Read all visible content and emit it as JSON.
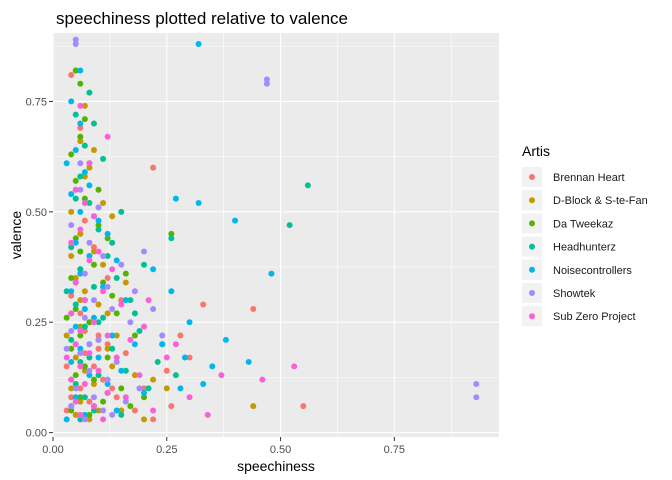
{
  "chart_data": {
    "type": "scatter",
    "title": "speechiness plotted relative to valence",
    "xlabel": "speechiness",
    "ylabel": "valence",
    "xlim": [
      0.0,
      0.98
    ],
    "ylim": [
      -0.01,
      0.905
    ],
    "x_ticks": [
      0.0,
      0.25,
      0.5,
      0.75
    ],
    "x_tick_labels": [
      "0.00",
      "0.25",
      "0.50",
      "0.75"
    ],
    "y_ticks": [
      0.0,
      0.25,
      0.5,
      0.75
    ],
    "y_tick_labels": [
      "0.00",
      "0.25",
      "0.50",
      "0.75"
    ],
    "grid": true,
    "legend_position": "right",
    "legend_title": "Artis",
    "series": [
      {
        "name": "Brennan Heart",
        "color": "#F8766D",
        "points": [
          [
            0.04,
            0.81
          ],
          [
            0.22,
            0.6
          ],
          [
            0.06,
            0.69
          ],
          [
            0.33,
            0.29
          ],
          [
            0.44,
            0.28
          ],
          [
            0.55,
            0.06
          ],
          [
            0.28,
            0.22
          ],
          [
            0.05,
            0.55
          ],
          [
            0.07,
            0.48
          ],
          [
            0.09,
            0.42
          ],
          [
            0.12,
            0.35
          ],
          [
            0.15,
            0.3
          ],
          [
            0.04,
            0.31
          ],
          [
            0.06,
            0.27
          ],
          [
            0.08,
            0.25
          ],
          [
            0.1,
            0.22
          ],
          [
            0.05,
            0.2
          ],
          [
            0.07,
            0.18
          ],
          [
            0.03,
            0.15
          ],
          [
            0.09,
            0.15
          ],
          [
            0.11,
            0.12
          ],
          [
            0.13,
            0.1
          ],
          [
            0.06,
            0.1
          ],
          [
            0.04,
            0.08
          ],
          [
            0.08,
            0.07
          ],
          [
            0.18,
            0.05
          ],
          [
            0.22,
            0.03
          ],
          [
            0.03,
            0.05
          ],
          [
            0.05,
            0.04
          ],
          [
            0.07,
            0.23
          ],
          [
            0.06,
            0.37
          ],
          [
            0.04,
            0.12
          ],
          [
            0.2,
            0.1
          ],
          [
            0.16,
            0.18
          ],
          [
            0.25,
            0.14
          ],
          [
            0.1,
            0.19
          ],
          [
            0.12,
            0.2
          ],
          [
            0.14,
            0.08
          ],
          [
            0.3,
            0.17
          ],
          [
            0.26,
            0.06
          ]
        ]
      },
      {
        "name": "D-Block & S-te-Fan",
        "color": "#C49A00",
        "points": [
          [
            0.05,
            0.82
          ],
          [
            0.07,
            0.74
          ],
          [
            0.06,
            0.66
          ],
          [
            0.08,
            0.6
          ],
          [
            0.04,
            0.5
          ],
          [
            0.06,
            0.45
          ],
          [
            0.09,
            0.41
          ],
          [
            0.11,
            0.38
          ],
          [
            0.13,
            0.49
          ],
          [
            0.05,
            0.35
          ],
          [
            0.07,
            0.32
          ],
          [
            0.1,
            0.29
          ],
          [
            0.04,
            0.27
          ],
          [
            0.06,
            0.24
          ],
          [
            0.08,
            0.2
          ],
          [
            0.12,
            0.19
          ],
          [
            0.05,
            0.17
          ],
          [
            0.07,
            0.14
          ],
          [
            0.09,
            0.11
          ],
          [
            0.04,
            0.1
          ],
          [
            0.06,
            0.07
          ],
          [
            0.1,
            0.05
          ],
          [
            0.15,
            0.05
          ],
          [
            0.2,
            0.03
          ],
          [
            0.44,
            0.06
          ],
          [
            0.05,
            0.04
          ],
          [
            0.08,
            0.03
          ],
          [
            0.14,
            0.22
          ],
          [
            0.18,
            0.13
          ],
          [
            0.16,
            0.34
          ],
          [
            0.03,
            0.22
          ],
          [
            0.11,
            0.52
          ],
          [
            0.09,
            0.64
          ],
          [
            0.13,
            0.15
          ],
          [
            0.22,
            0.12
          ],
          [
            0.07,
            0.58
          ],
          [
            0.06,
            0.3
          ],
          [
            0.12,
            0.27
          ],
          [
            0.04,
            0.4
          ],
          [
            0.25,
            0.1
          ]
        ]
      },
      {
        "name": "Da Tweekaz",
        "color": "#53B400",
        "points": [
          [
            0.05,
            0.82
          ],
          [
            0.06,
            0.67
          ],
          [
            0.08,
            0.61
          ],
          [
            0.05,
            0.57
          ],
          [
            0.07,
            0.53
          ],
          [
            0.1,
            0.47
          ],
          [
            0.12,
            0.44
          ],
          [
            0.26,
            0.45
          ],
          [
            0.06,
            0.41
          ],
          [
            0.09,
            0.38
          ],
          [
            0.04,
            0.35
          ],
          [
            0.11,
            0.34
          ],
          [
            0.07,
            0.3
          ],
          [
            0.05,
            0.28
          ],
          [
            0.14,
            0.27
          ],
          [
            0.08,
            0.25
          ],
          [
            0.06,
            0.22
          ],
          [
            0.1,
            0.21
          ],
          [
            0.04,
            0.19
          ],
          [
            0.12,
            0.17
          ],
          [
            0.07,
            0.15
          ],
          [
            0.05,
            0.13
          ],
          [
            0.09,
            0.12
          ],
          [
            0.15,
            0.1
          ],
          [
            0.06,
            0.08
          ],
          [
            0.11,
            0.07
          ],
          [
            0.04,
            0.05
          ],
          [
            0.08,
            0.04
          ],
          [
            0.17,
            0.06
          ],
          [
            0.2,
            0.08
          ],
          [
            0.03,
            0.26
          ],
          [
            0.13,
            0.31
          ],
          [
            0.16,
            0.36
          ],
          [
            0.05,
            0.44
          ],
          [
            0.09,
            0.49
          ],
          [
            0.07,
            0.71
          ],
          [
            0.06,
            0.79
          ],
          [
            0.04,
            0.63
          ],
          [
            0.1,
            0.55
          ],
          [
            0.18,
            0.22
          ]
        ]
      },
      {
        "name": "Headhunterz",
        "color": "#00C094",
        "points": [
          [
            0.56,
            0.56
          ],
          [
            0.52,
            0.47
          ],
          [
            0.26,
            0.44
          ],
          [
            0.15,
            0.5
          ],
          [
            0.05,
            0.72
          ],
          [
            0.07,
            0.65
          ],
          [
            0.06,
            0.58
          ],
          [
            0.08,
            0.52
          ],
          [
            0.1,
            0.46
          ],
          [
            0.04,
            0.42
          ],
          [
            0.12,
            0.4
          ],
          [
            0.06,
            0.37
          ],
          [
            0.14,
            0.35
          ],
          [
            0.09,
            0.33
          ],
          [
            0.17,
            0.3
          ],
          [
            0.05,
            0.29
          ],
          [
            0.11,
            0.26
          ],
          [
            0.07,
            0.24
          ],
          [
            0.19,
            0.23
          ],
          [
            0.04,
            0.21
          ],
          [
            0.13,
            0.19
          ],
          [
            0.08,
            0.17
          ],
          [
            0.06,
            0.16
          ],
          [
            0.16,
            0.14
          ],
          [
            0.1,
            0.13
          ],
          [
            0.05,
            0.11
          ],
          [
            0.21,
            0.1
          ],
          [
            0.12,
            0.09
          ],
          [
            0.07,
            0.08
          ],
          [
            0.04,
            0.06
          ],
          [
            0.09,
            0.05
          ],
          [
            0.15,
            0.04
          ],
          [
            0.06,
            0.03
          ],
          [
            0.24,
            0.2
          ],
          [
            0.18,
            0.27
          ],
          [
            0.03,
            0.32
          ],
          [
            0.11,
            0.62
          ],
          [
            0.08,
            0.77
          ],
          [
            0.05,
            0.53
          ],
          [
            0.2,
            0.38
          ],
          [
            0.13,
            0.43
          ],
          [
            0.23,
            0.16
          ],
          [
            0.27,
            0.13
          ],
          [
            0.09,
            0.7
          ],
          [
            0.1,
            0.25
          ]
        ]
      },
      {
        "name": "Noisecontrollers",
        "color": "#00B6EB",
        "points": [
          [
            0.32,
            0.88
          ],
          [
            0.04,
            0.75
          ],
          [
            0.03,
            0.61
          ],
          [
            0.06,
            0.7
          ],
          [
            0.05,
            0.64
          ],
          [
            0.07,
            0.59
          ],
          [
            0.08,
            0.56
          ],
          [
            0.04,
            0.54
          ],
          [
            0.06,
            0.5
          ],
          [
            0.1,
            0.48
          ],
          [
            0.12,
            0.45
          ],
          [
            0.05,
            0.43
          ],
          [
            0.08,
            0.4
          ],
          [
            0.14,
            0.39
          ],
          [
            0.06,
            0.36
          ],
          [
            0.11,
            0.33
          ],
          [
            0.04,
            0.32
          ],
          [
            0.16,
            0.3
          ],
          [
            0.07,
            0.28
          ],
          [
            0.09,
            0.26
          ],
          [
            0.05,
            0.24
          ],
          [
            0.13,
            0.22
          ],
          [
            0.18,
            0.2
          ],
          [
            0.06,
            0.19
          ],
          [
            0.1,
            0.17
          ],
          [
            0.04,
            0.16
          ],
          [
            0.15,
            0.14
          ],
          [
            0.08,
            0.13
          ],
          [
            0.12,
            0.11
          ],
          [
            0.2,
            0.09
          ],
          [
            0.05,
            0.08
          ],
          [
            0.09,
            0.06
          ],
          [
            0.14,
            0.05
          ],
          [
            0.07,
            0.04
          ],
          [
            0.03,
            0.03
          ],
          [
            0.32,
            0.52
          ],
          [
            0.4,
            0.48
          ],
          [
            0.27,
            0.53
          ],
          [
            0.22,
            0.37
          ],
          [
            0.26,
            0.32
          ],
          [
            0.3,
            0.25
          ],
          [
            0.24,
            0.2
          ],
          [
            0.29,
            0.17
          ],
          [
            0.35,
            0.15
          ],
          [
            0.43,
            0.16
          ],
          [
            0.38,
            0.21
          ],
          [
            0.33,
            0.11
          ],
          [
            0.28,
            0.1
          ],
          [
            0.48,
            0.36
          ],
          [
            0.06,
            0.82
          ]
        ]
      },
      {
        "name": "Showtek",
        "color": "#A58AFF",
        "points": [
          [
            0.05,
            0.88
          ],
          [
            0.05,
            0.89
          ],
          [
            0.47,
            0.8
          ],
          [
            0.47,
            0.79
          ],
          [
            0.93,
            0.11
          ],
          [
            0.93,
            0.08
          ],
          [
            0.06,
            0.55
          ],
          [
            0.04,
            0.47
          ],
          [
            0.08,
            0.43
          ],
          [
            0.11,
            0.4
          ],
          [
            0.15,
            0.38
          ],
          [
            0.05,
            0.34
          ],
          [
            0.09,
            0.3
          ],
          [
            0.13,
            0.28
          ],
          [
            0.07,
            0.26
          ],
          [
            0.17,
            0.25
          ],
          [
            0.04,
            0.23
          ],
          [
            0.1,
            0.21
          ],
          [
            0.06,
            0.18
          ],
          [
            0.14,
            0.16
          ],
          [
            0.08,
            0.14
          ],
          [
            0.12,
            0.12
          ],
          [
            0.05,
            0.1
          ],
          [
            0.19,
            0.1
          ],
          [
            0.09,
            0.08
          ],
          [
            0.16,
            0.07
          ],
          [
            0.04,
            0.06
          ],
          [
            0.11,
            0.05
          ],
          [
            0.07,
            0.03
          ],
          [
            0.13,
            0.04
          ],
          [
            0.2,
            0.41
          ],
          [
            0.18,
            0.32
          ],
          [
            0.22,
            0.28
          ],
          [
            0.03,
            0.19
          ],
          [
            0.07,
            0.36
          ],
          [
            0.1,
            0.51
          ],
          [
            0.06,
            0.61
          ],
          [
            0.08,
            0.2
          ],
          [
            0.12,
            0.33
          ],
          [
            0.24,
            0.22
          ]
        ]
      },
      {
        "name": "Sub Zero Project",
        "color": "#FB61D7",
        "points": [
          [
            0.12,
            0.67
          ],
          [
            0.05,
            0.55
          ],
          [
            0.07,
            0.52
          ],
          [
            0.09,
            0.49
          ],
          [
            0.06,
            0.46
          ],
          [
            0.04,
            0.43
          ],
          [
            0.1,
            0.41
          ],
          [
            0.08,
            0.39
          ],
          [
            0.13,
            0.37
          ],
          [
            0.05,
            0.34
          ],
          [
            0.11,
            0.32
          ],
          [
            0.07,
            0.3
          ],
          [
            0.15,
            0.29
          ],
          [
            0.04,
            0.27
          ],
          [
            0.09,
            0.25
          ],
          [
            0.06,
            0.23
          ],
          [
            0.12,
            0.22
          ],
          [
            0.17,
            0.21
          ],
          [
            0.05,
            0.2
          ],
          [
            0.08,
            0.18
          ],
          [
            0.14,
            0.17
          ],
          [
            0.06,
            0.15
          ],
          [
            0.1,
            0.14
          ],
          [
            0.19,
            0.13
          ],
          [
            0.04,
            0.12
          ],
          [
            0.07,
            0.11
          ],
          [
            0.12,
            0.09
          ],
          [
            0.16,
            0.08
          ],
          [
            0.05,
            0.07
          ],
          [
            0.09,
            0.06
          ],
          [
            0.22,
            0.05
          ],
          [
            0.06,
            0.04
          ],
          [
            0.11,
            0.03
          ],
          [
            0.46,
            0.12
          ],
          [
            0.53,
            0.15
          ],
          [
            0.37,
            0.13
          ],
          [
            0.34,
            0.04
          ],
          [
            0.3,
            0.08
          ],
          [
            0.25,
            0.17
          ],
          [
            0.21,
            0.3
          ],
          [
            0.27,
            0.2
          ],
          [
            0.03,
            0.17
          ],
          [
            0.08,
            0.61
          ],
          [
            0.06,
            0.74
          ],
          [
            0.2,
            0.24
          ]
        ]
      }
    ]
  }
}
